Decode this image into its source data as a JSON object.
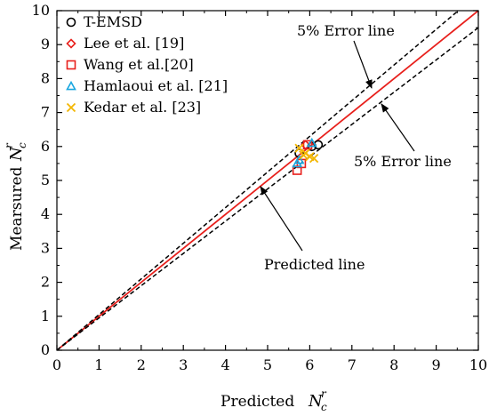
{
  "chart_data": {
    "type": "scatter",
    "xlabel": "Predicted",
    "ylabel": "Mearsured",
    "axis_symbol": {
      "base": "N",
      "sub": "c",
      "sup": "r"
    },
    "xlim": [
      0,
      10
    ],
    "ylim": [
      0,
      10
    ],
    "x_ticks": [
      "0",
      "1",
      "2",
      "3",
      "4",
      "5",
      "6",
      "7",
      "8",
      "9",
      "10"
    ],
    "y_ticks": [
      "0",
      "1",
      "2",
      "3",
      "4",
      "5",
      "6",
      "7",
      "8",
      "9",
      "10"
    ],
    "grid": false,
    "legend_position": "top-left",
    "lines": [
      {
        "id": "predicted",
        "slope": 1.0,
        "color": "#e8201c",
        "dash": "solid"
      },
      {
        "id": "upper",
        "slope": 1.05,
        "color": "#000000",
        "dash": "dashed"
      },
      {
        "id": "lower",
        "slope": 0.95,
        "color": "#000000",
        "dash": "dashed"
      }
    ],
    "series": [
      {
        "name": "T-EMSD",
        "marker": "circle",
        "color": "#000000",
        "points": [
          [
            5.75,
            5.8
          ],
          [
            6.2,
            6.05
          ],
          [
            6.05,
            6.0
          ]
        ]
      },
      {
        "name": "Lee et al. [19]",
        "marker": "diamond",
        "color": "#e8201c",
        "points": [
          [
            5.9,
            6.05
          ]
        ]
      },
      {
        "name": "Wang et al.[20]",
        "marker": "square",
        "color": "#e8201c",
        "points": [
          [
            5.7,
            5.3
          ],
          [
            5.95,
            6.05
          ],
          [
            5.8,
            5.5
          ]
        ]
      },
      {
        "name": "Hamlaoui et al. [21]",
        "marker": "triangle",
        "color": "#1aa7e0",
        "points": [
          [
            5.7,
            5.5
          ],
          [
            6.05,
            6.1
          ],
          [
            5.75,
            5.6
          ]
        ]
      },
      {
        "name": "Kedar et al. [23]",
        "marker": "x",
        "color": "#f3b600",
        "points": [
          [
            5.75,
            5.95
          ],
          [
            5.85,
            5.75
          ],
          [
            6.0,
            5.7
          ],
          [
            5.9,
            5.8
          ],
          [
            6.1,
            5.65
          ]
        ]
      }
    ],
    "annotations": [
      {
        "id": "err-upper",
        "text": "5% Error line"
      },
      {
        "id": "err-lower",
        "text": "5% Error line"
      },
      {
        "id": "predicted-line",
        "text": "Predicted line"
      }
    ]
  }
}
